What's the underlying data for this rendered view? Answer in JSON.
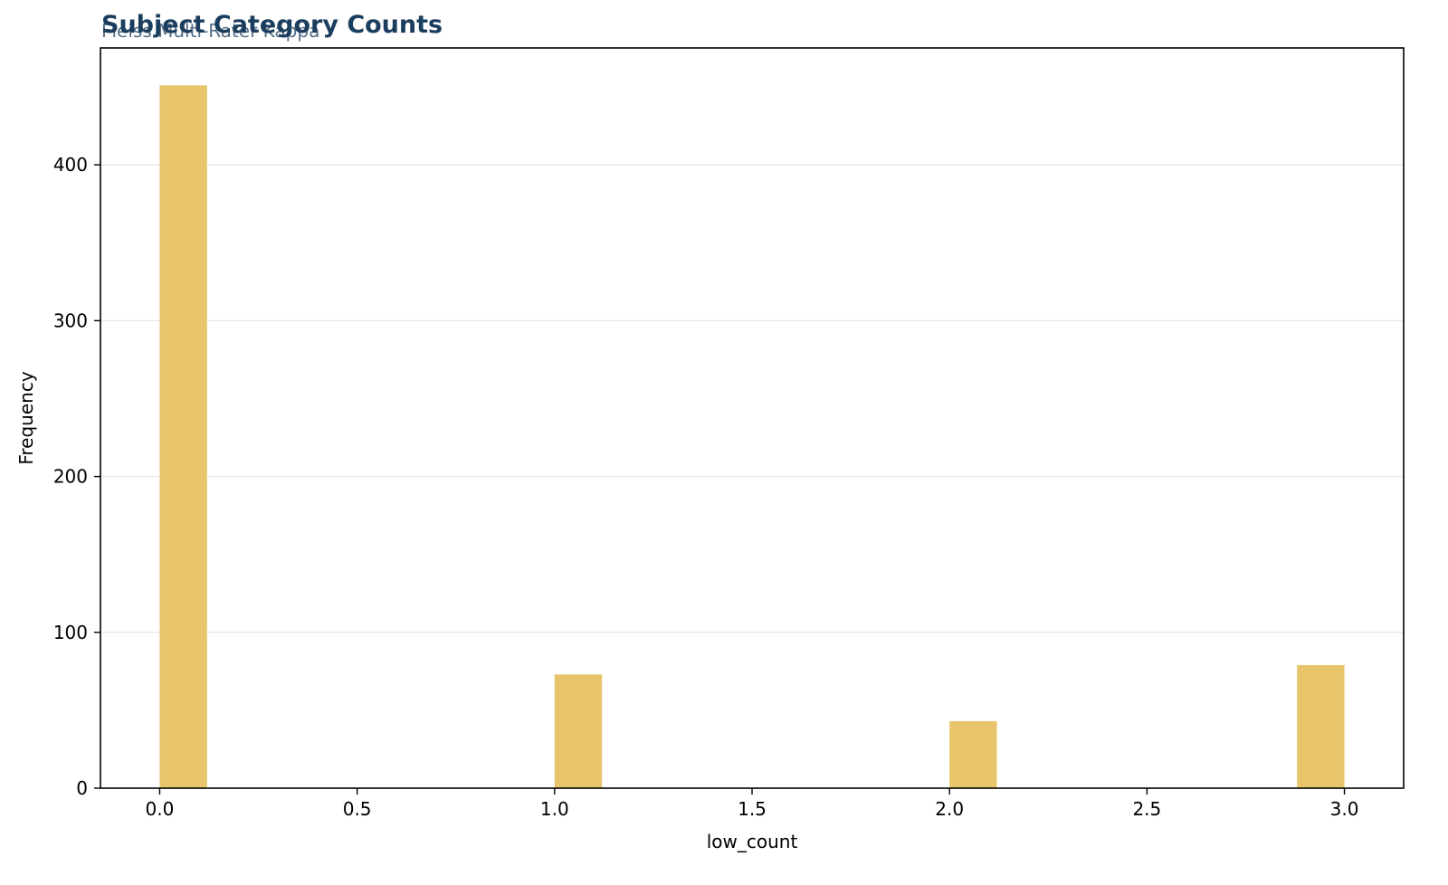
{
  "chart_data": {
    "type": "bar",
    "title": "Subject Category Counts",
    "subtitle": "Fleiss Multi-Rater Kappa",
    "xlabel": "low_count",
    "ylabel": "Frequency",
    "xlim": [
      -0.15,
      3.15
    ],
    "ylim": [
      0,
      475
    ],
    "x_ticks": [
      0.0,
      0.5,
      1.0,
      1.5,
      2.0,
      2.5,
      3.0
    ],
    "x_tick_labels": [
      "0.0",
      "0.5",
      "1.0",
      "1.5",
      "2.0",
      "2.5",
      "3.0"
    ],
    "y_ticks": [
      0,
      100,
      200,
      300,
      400
    ],
    "y_tick_labels": [
      "0",
      "100",
      "200",
      "300",
      "400"
    ],
    "bins": [
      {
        "x0": 0.0,
        "x1": 0.12,
        "count": 451
      },
      {
        "x0": 1.0,
        "x1": 1.12,
        "count": 73
      },
      {
        "x0": 2.0,
        "x1": 2.12,
        "count": 43
      },
      {
        "x0": 2.88,
        "x1": 3.0,
        "count": 79
      }
    ],
    "grid": "y",
    "bar_color": "#e8c56b",
    "grid_color": "#e8e8e8",
    "title_color": "#1b3d5e"
  }
}
